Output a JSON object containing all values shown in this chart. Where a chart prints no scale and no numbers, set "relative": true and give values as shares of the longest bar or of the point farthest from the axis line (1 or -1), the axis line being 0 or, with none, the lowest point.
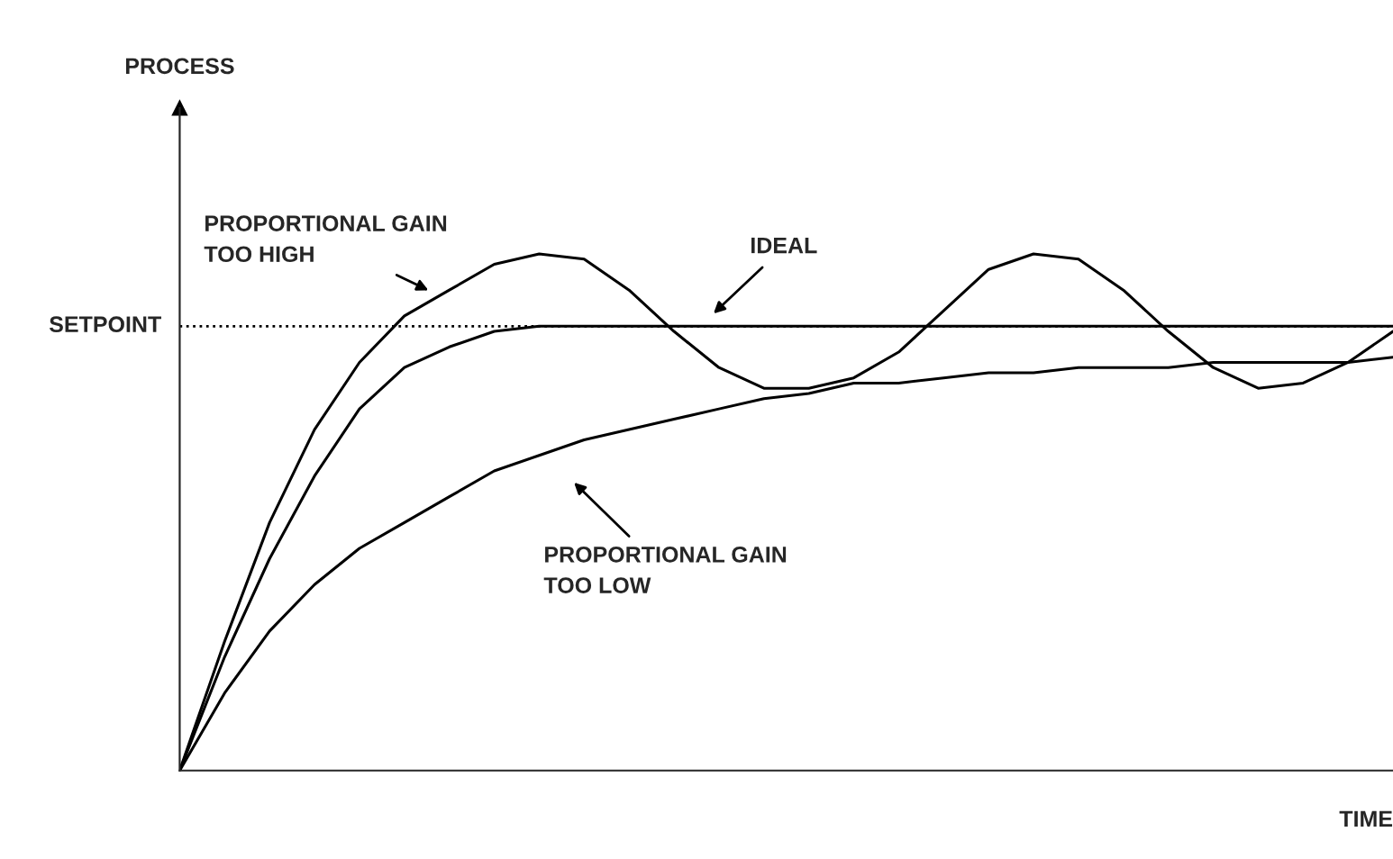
{
  "chart_data": {
    "type": "line",
    "relative": true,
    "xlabel": "TIME",
    "categories": [
      null,
      null,
      null,
      null,
      null,
      null,
      null,
      null,
      null,
      null,
      null,
      null,
      null,
      null,
      null,
      null,
      null,
      null,
      null,
      null,
      null,
      null,
      null,
      null,
      null,
      null,
      null,
      null
    ],
    "series": [
      {
        "color": "#000000",
        "values": [
          0,
          0.25,
          0.48,
          0.66,
          0.79,
          0.88,
          0.93,
          0.98,
          1,
          0.99,
          0.93,
          0.85,
          0.78,
          0.74,
          0.74,
          0.76,
          0.81,
          0.89,
          0.97,
          1,
          0.99,
          0.93,
          0.85,
          0.78,
          0.74,
          0.75,
          0.79,
          0.85
        ]
      },
      {
        "color": "#000000",
        "values": [
          0,
          0.22,
          0.41,
          0.57,
          0.7,
          0.78,
          0.82,
          0.85,
          0.86,
          0.86,
          0.86,
          0.86,
          0.86,
          0.86,
          0.86,
          0.86,
          0.86,
          0.86,
          0.86,
          0.86,
          0.86,
          0.86,
          0.86,
          0.86,
          0.86,
          0.86,
          0.86,
          0.86
        ]
      },
      {
        "color": "#000000",
        "values": [
          0,
          0.15,
          0.27,
          0.36,
          0.43,
          0.48,
          0.53,
          0.58,
          0.61,
          0.64,
          0.66,
          0.68,
          0.7,
          0.72,
          0.73,
          0.75,
          0.75,
          0.76,
          0.77,
          0.77,
          0.78,
          0.78,
          0.78,
          0.79,
          0.79,
          0.79,
          0.79,
          0.8
        ]
      }
    ],
    "ref_lines": [
      {
        "axis": "y",
        "value": 0.86,
        "label": "SETPOINT",
        "line_style": "dotted",
        "color": "#000000"
      }
    ],
    "annotations": [
      "PROCESS",
      "PROPORTIONAL GAIN\nTOO HIGH",
      "IDEAL",
      "PROPORTIONAL GAIN\nTOO LOW"
    ],
    "legend": false
  }
}
